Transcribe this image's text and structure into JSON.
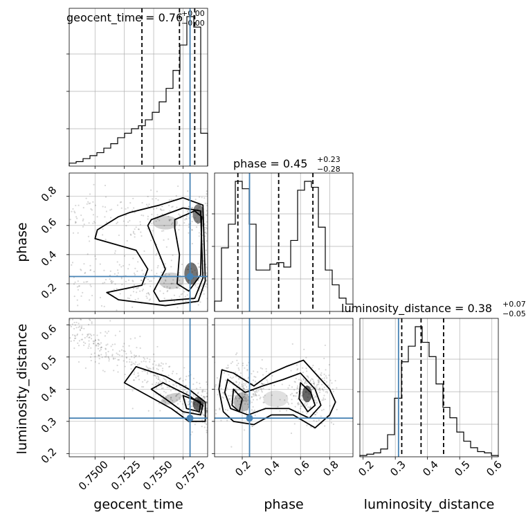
{
  "chart_data": [
    {
      "type": "histogram",
      "panel": "geocent_time",
      "title": {
        "main": "geocent_time = 0.76",
        "sup": "+0.00",
        "sub": "−0.00"
      },
      "xlim": [
        0.7478,
        0.7596
      ],
      "bins": [
        0.7478,
        0.74839,
        0.74898,
        0.74957,
        0.75016,
        0.75075,
        0.75134,
        0.75193,
        0.75252,
        0.75311,
        0.7537,
        0.75429,
        0.75488,
        0.75547,
        0.75606,
        0.75665,
        0.75724,
        0.75783,
        0.75842,
        0.75901,
        0.7596
      ],
      "values": [
        0.02,
        0.03,
        0.05,
        0.07,
        0.09,
        0.12,
        0.15,
        0.19,
        0.22,
        0.25,
        0.27,
        0.31,
        0.36,
        0.43,
        0.52,
        0.64,
        0.81,
        1.0,
        0.93,
        0.22
      ],
      "quantile_lines": [
        0.754,
        0.7572,
        0.7585
      ],
      "truth": 0.7581
    },
    {
      "type": "histogram",
      "panel": "phase",
      "title": {
        "main": "phase = 0.45",
        "sup": "+0.23",
        "sub": "−0.28"
      },
      "xlim": [
        0.01,
        0.96
      ],
      "bins": [
        0.01,
        0.0575,
        0.105,
        0.1525,
        0.2,
        0.2475,
        0.295,
        0.3425,
        0.39,
        0.4375,
        0.485,
        0.5325,
        0.58,
        0.6275,
        0.675,
        0.7225,
        0.77,
        0.8175,
        0.865,
        0.9125,
        0.96
      ],
      "values": [
        0.07,
        0.43,
        0.59,
        0.88,
        0.83,
        0.59,
        0.28,
        0.28,
        0.32,
        0.33,
        0.3,
        0.48,
        0.82,
        0.88,
        0.84,
        0.57,
        0.28,
        0.18,
        0.09,
        0.05
      ],
      "quantile_lines": [
        0.17,
        0.45,
        0.685
      ],
      "truth": 0.25
    },
    {
      "type": "histogram",
      "panel": "luminosity_distance",
      "title": {
        "main": "luminosity_distance = 0.38",
        "sup": "+0.07",
        "sub": "−0.05"
      },
      "xlim": [
        0.19,
        0.62
      ],
      "bins": [
        0.19,
        0.2115,
        0.233,
        0.2545,
        0.276,
        0.2975,
        0.319,
        0.3405,
        0.362,
        0.3835,
        0.405,
        0.4265,
        0.448,
        0.4695,
        0.491,
        0.5125,
        0.534,
        0.5555,
        0.577,
        0.5985,
        0.62
      ],
      "values": [
        0.01,
        0.02,
        0.03,
        0.06,
        0.17,
        0.45,
        0.73,
        0.85,
        1.0,
        0.88,
        0.77,
        0.56,
        0.38,
        0.3,
        0.19,
        0.12,
        0.07,
        0.04,
        0.03,
        0.01
      ],
      "quantile_lines": [
        0.32,
        0.38,
        0.45
      ],
      "truth": 0.31
    },
    {
      "type": "scatter",
      "panel": "phase vs geocent_time",
      "xlim": [
        0.7478,
        0.7596
      ],
      "ylim": [
        0.01,
        0.96
      ],
      "truth": {
        "x": 0.7581,
        "y": 0.25
      }
    },
    {
      "type": "scatter",
      "panel": "luminosity_distance vs geocent_time",
      "xlim": [
        0.7478,
        0.7596
      ],
      "ylim": [
        0.19,
        0.62
      ],
      "truth": {
        "x": 0.7581,
        "y": 0.31
      }
    },
    {
      "type": "scatter",
      "panel": "luminosity_distance vs phase",
      "xlim": [
        0.01,
        0.96
      ],
      "ylim": [
        0.19,
        0.62
      ],
      "truth": {
        "x": 0.25,
        "y": 0.31
      }
    }
  ],
  "axes": {
    "xlabels": [
      "geocent_time",
      "phase",
      "luminosity_distance"
    ],
    "ylabels": [
      "phase",
      "luminosity_distance"
    ],
    "geocent_ticks": [
      "0.7500",
      "0.7525",
      "0.7550",
      "0.7575"
    ],
    "phase_ticks": [
      "0.2",
      "0.4",
      "0.6",
      "0.8"
    ],
    "lumdist_y_ticks": [
      "0.2",
      "0.3",
      "0.4",
      "0.5",
      "0.6"
    ],
    "lumdist_x_ticks": [
      "0.2",
      "0.3",
      "0.4",
      "0.5",
      "0.6"
    ]
  },
  "colors": {
    "truth": "#4682b4",
    "line": "#000000",
    "grid": "#b0b0b0"
  }
}
